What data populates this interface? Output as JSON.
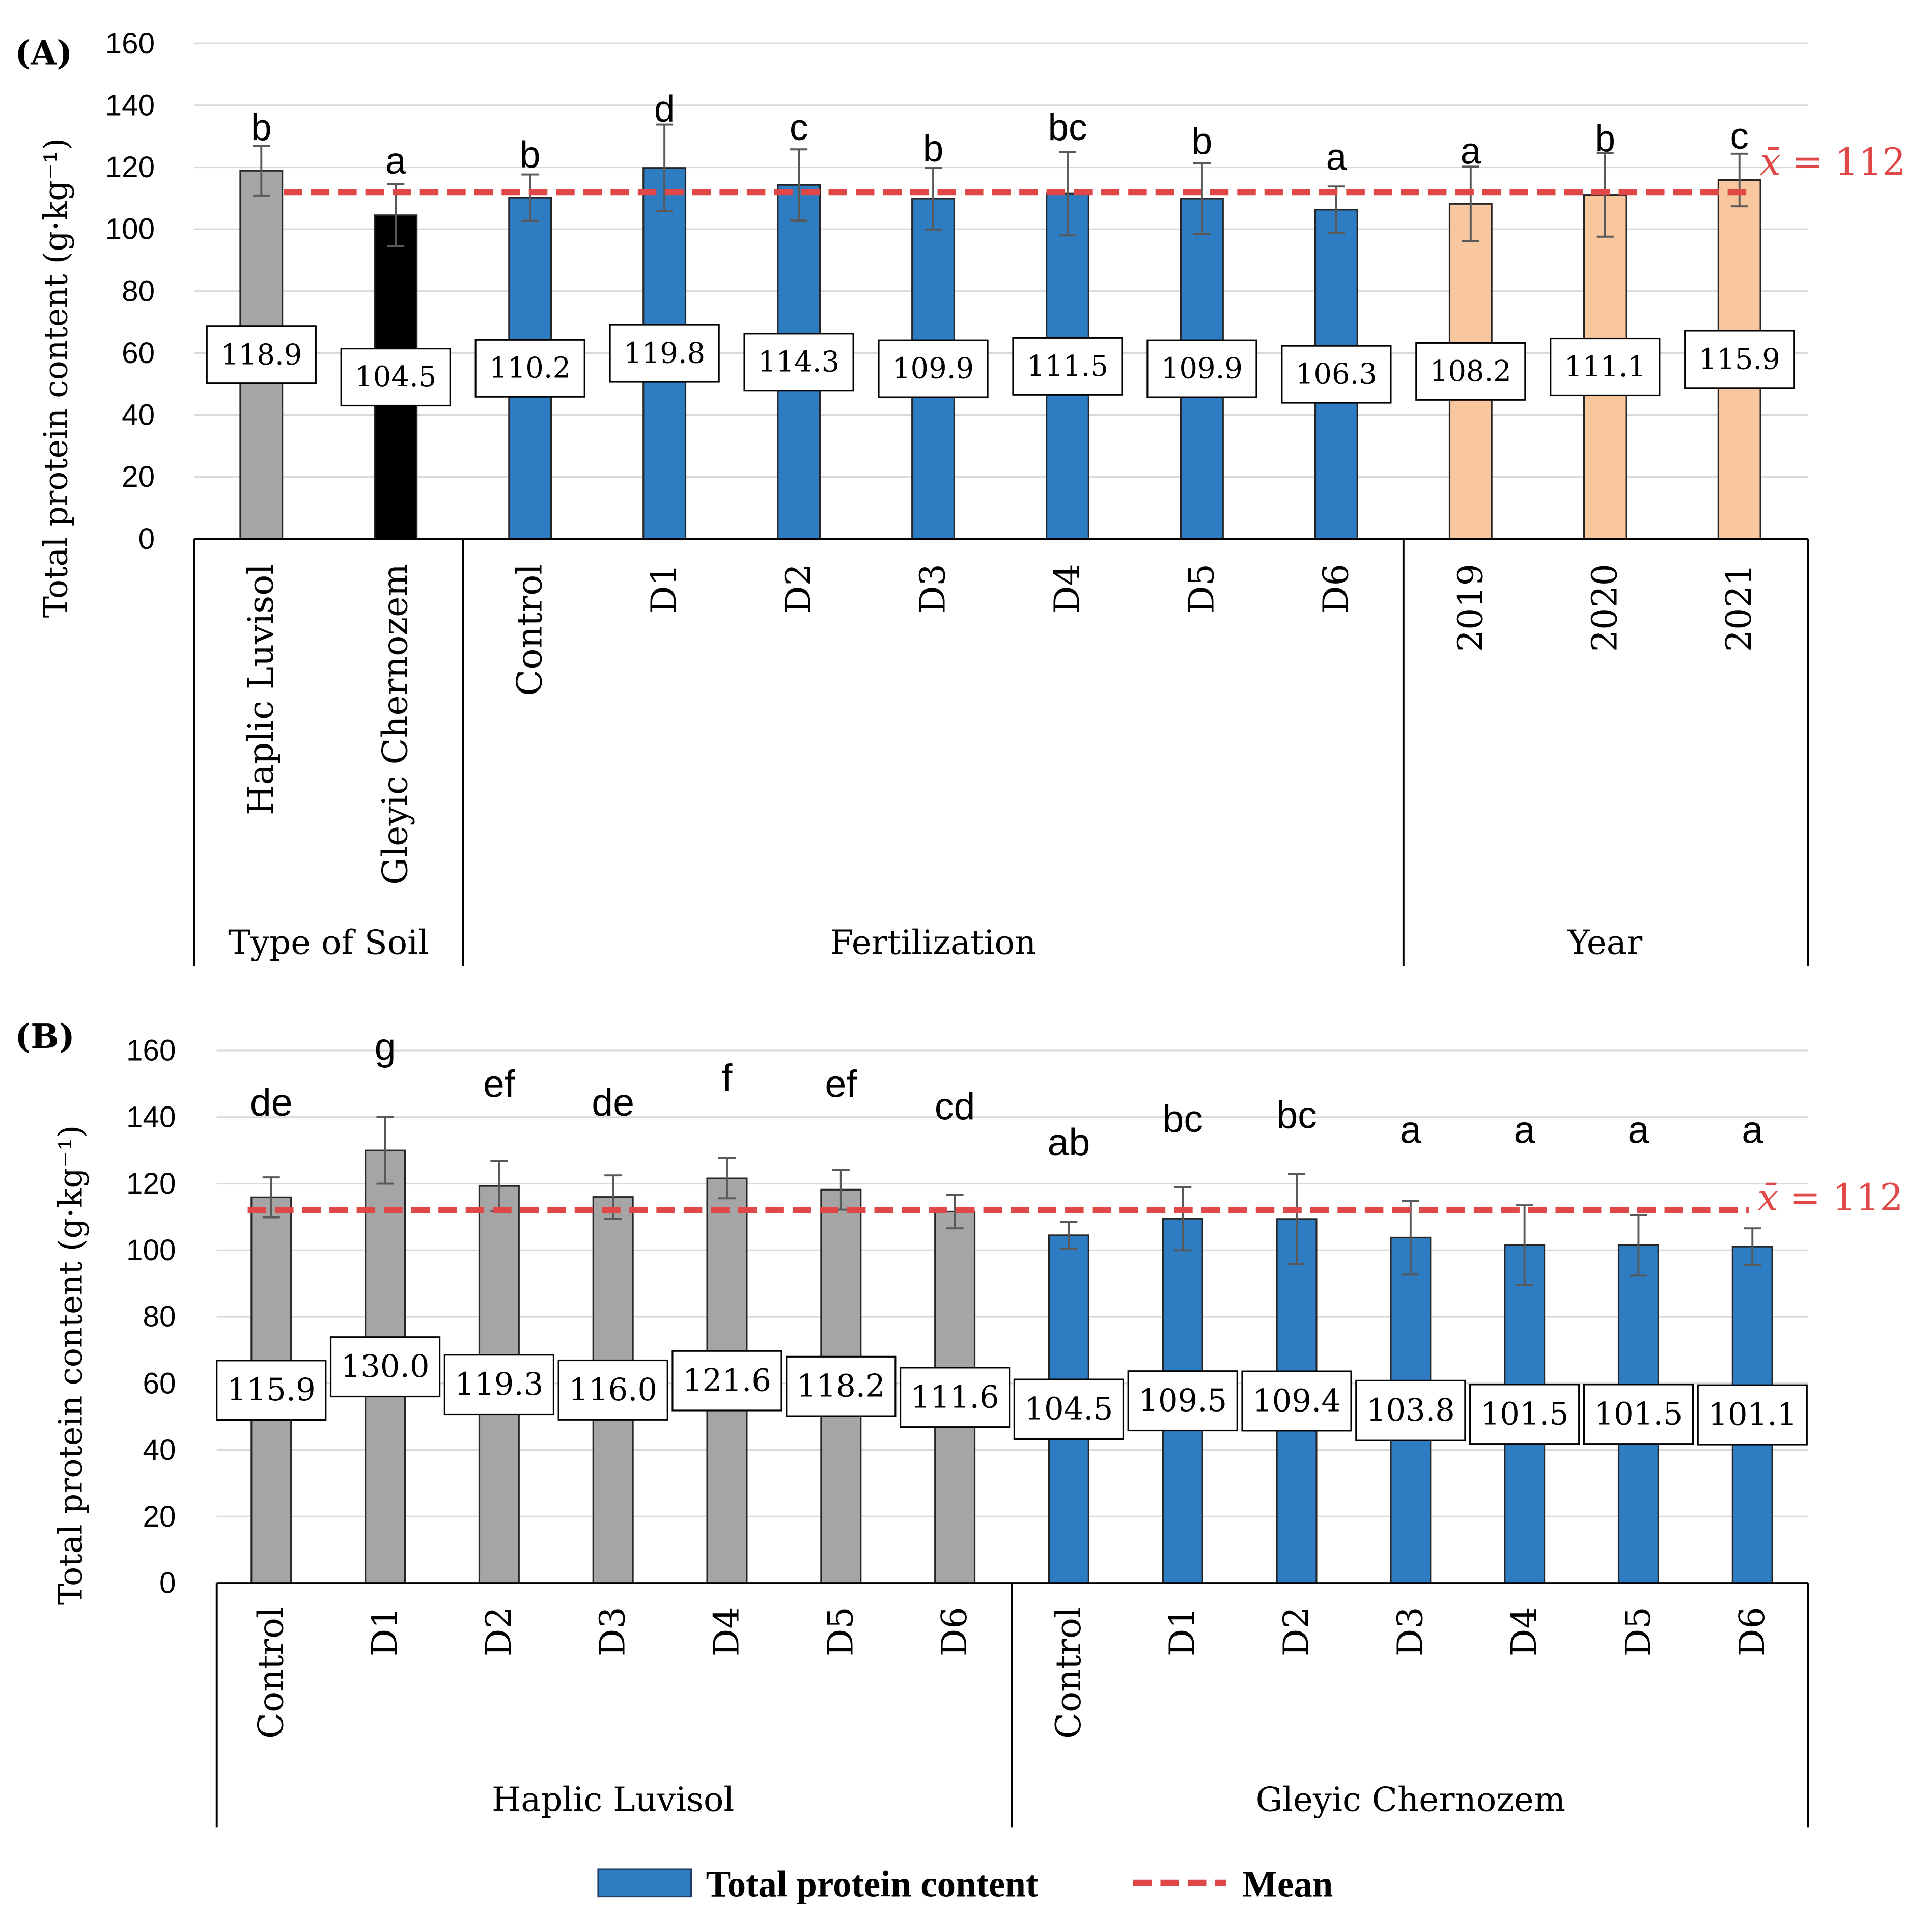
{
  "legend": {
    "bar_label": "Total protein content",
    "line_label": "Mean",
    "bar_color": "#2E7CC2",
    "line_color": "#E04848"
  },
  "chart_data": [
    {
      "panel_label": "(A)",
      "type": "bar",
      "title": "",
      "xlabel": "",
      "ylabel": "Total protein content (g·kg⁻¹)",
      "ylim": [
        0,
        160
      ],
      "yticks": [
        0,
        20,
        40,
        60,
        80,
        100,
        120,
        140,
        160
      ],
      "grid": true,
      "categories": [
        "Haplic Luvisol",
        "Gleyic Chernozem",
        "Control",
        "D1",
        "D2",
        "D3",
        "D4",
        "D5",
        "D6",
        "2019",
        "2020",
        "2021"
      ],
      "groups": [
        {
          "label": "Type of Soil",
          "size": 2
        },
        {
          "label": "Fertilization",
          "size": 7
        },
        {
          "label": "Year",
          "size": 3
        }
      ],
      "values": [
        118.9,
        104.5,
        110.2,
        119.8,
        114.3,
        109.9,
        111.5,
        109.9,
        106.3,
        108.2,
        111.1,
        115.9
      ],
      "value_labels": [
        "118.9",
        "104.5",
        "110.2",
        "119.8",
        "114.3",
        "109.9",
        "111.5",
        "109.9",
        "106.3",
        "108.2",
        "111.1",
        "115.9"
      ],
      "error": [
        8,
        10,
        7.5,
        14,
        11.5,
        10,
        13.5,
        11.5,
        7.5,
        12,
        13.5,
        8.5
      ],
      "letters": [
        "b",
        "a",
        "b",
        "d",
        "c",
        "b",
        "bc",
        "b",
        "a",
        "a",
        "b",
        "c"
      ],
      "bar_colors": [
        "#A5A5A5",
        "#000000",
        "#2E7CC2",
        "#2E7CC2",
        "#2E7CC2",
        "#2E7CC2",
        "#2E7CC2",
        "#2E7CC2",
        "#2E7CC2",
        "#F8C79D",
        "#F8C79D",
        "#F8C79D"
      ],
      "mean": 112,
      "mean_symbol": "x̄",
      "mean_value_text": "= 112",
      "mean_color": "#E04848",
      "error_color": "#595959",
      "grid_color": "#D9D9D9"
    },
    {
      "panel_label": "(B)",
      "type": "bar",
      "title": "",
      "xlabel": "",
      "ylabel": "Total protein content (g·kg⁻¹)",
      "ylim": [
        0,
        160
      ],
      "yticks": [
        0,
        20,
        40,
        60,
        80,
        100,
        120,
        140,
        160
      ],
      "grid": true,
      "categories": [
        "Control",
        "D1",
        "D2",
        "D3",
        "D4",
        "D5",
        "D6",
        "Control",
        "D1",
        "D2",
        "D3",
        "D4",
        "D5",
        "D6"
      ],
      "groups": [
        {
          "label": "Haplic Luvisol",
          "size": 7
        },
        {
          "label": "Gleyic Chernozem",
          "size": 7
        }
      ],
      "values": [
        115.9,
        130.0,
        119.3,
        116.0,
        121.6,
        118.2,
        111.6,
        104.5,
        109.5,
        109.4,
        103.8,
        101.5,
        101.5,
        101.1
      ],
      "value_labels": [
        "115.9",
        "130.0",
        "119.3",
        "116.0",
        "121.6",
        "118.2",
        "111.6",
        "104.5",
        "109.5",
        "109.4",
        "103.8",
        "101.5",
        "101.5",
        "101.1"
      ],
      "error": [
        6,
        10,
        7.5,
        6.5,
        6,
        6,
        5,
        4,
        9.5,
        13.5,
        11,
        12,
        9,
        5.5
      ],
      "letters": [
        "de",
        "g",
        "ef",
        "de",
        "f",
        "ef",
        "cd",
        "ab",
        "bc",
        "bc",
        "a",
        "a",
        "a",
        "a"
      ],
      "bar_colors": [
        "#A5A5A5",
        "#A5A5A5",
        "#A5A5A5",
        "#A5A5A5",
        "#A5A5A5",
        "#A5A5A5",
        "#A5A5A5",
        "#2E7CC2",
        "#2E7CC2",
        "#2E7CC2",
        "#2E7CC2",
        "#2E7CC2",
        "#2E7CC2",
        "#2E7CC2"
      ],
      "mean": 112,
      "mean_symbol": "x̄",
      "mean_value_text": "= 112",
      "mean_color": "#E04848",
      "error_color": "#595959",
      "grid_color": "#D9D9D9"
    }
  ]
}
